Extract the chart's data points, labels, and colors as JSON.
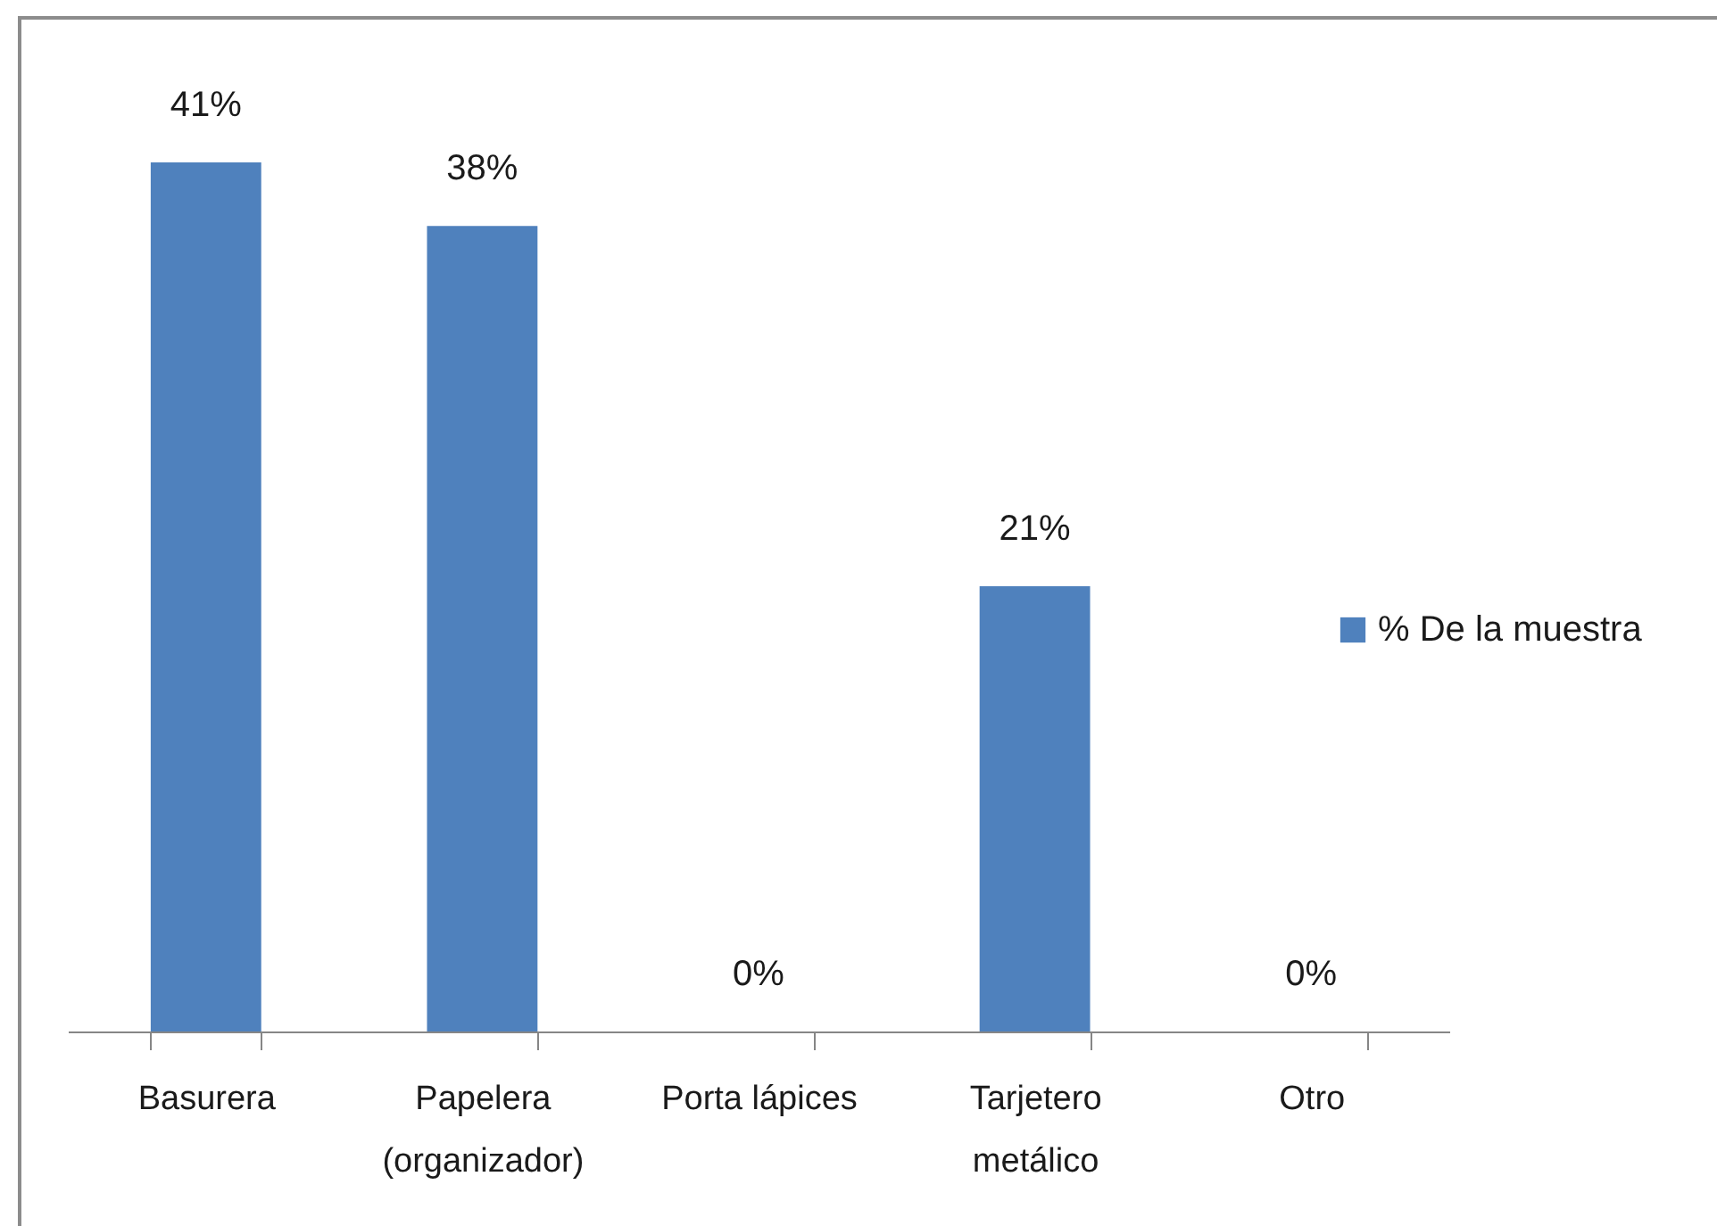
{
  "chart_data": {
    "type": "bar",
    "categories": [
      "Basurera",
      "Papelera (organizador)",
      "Porta lápices",
      "Tarjetero metálico",
      "Otro"
    ],
    "series": [
      {
        "name": "% De la muestra",
        "color": "#4f81bd",
        "values": [
          41,
          38,
          0,
          21,
          0
        ],
        "value_labels": [
          "41%",
          "38%",
          "0%",
          "21%",
          "0%"
        ]
      }
    ],
    "tick_labels": "x",
    "legend": "right"
  }
}
